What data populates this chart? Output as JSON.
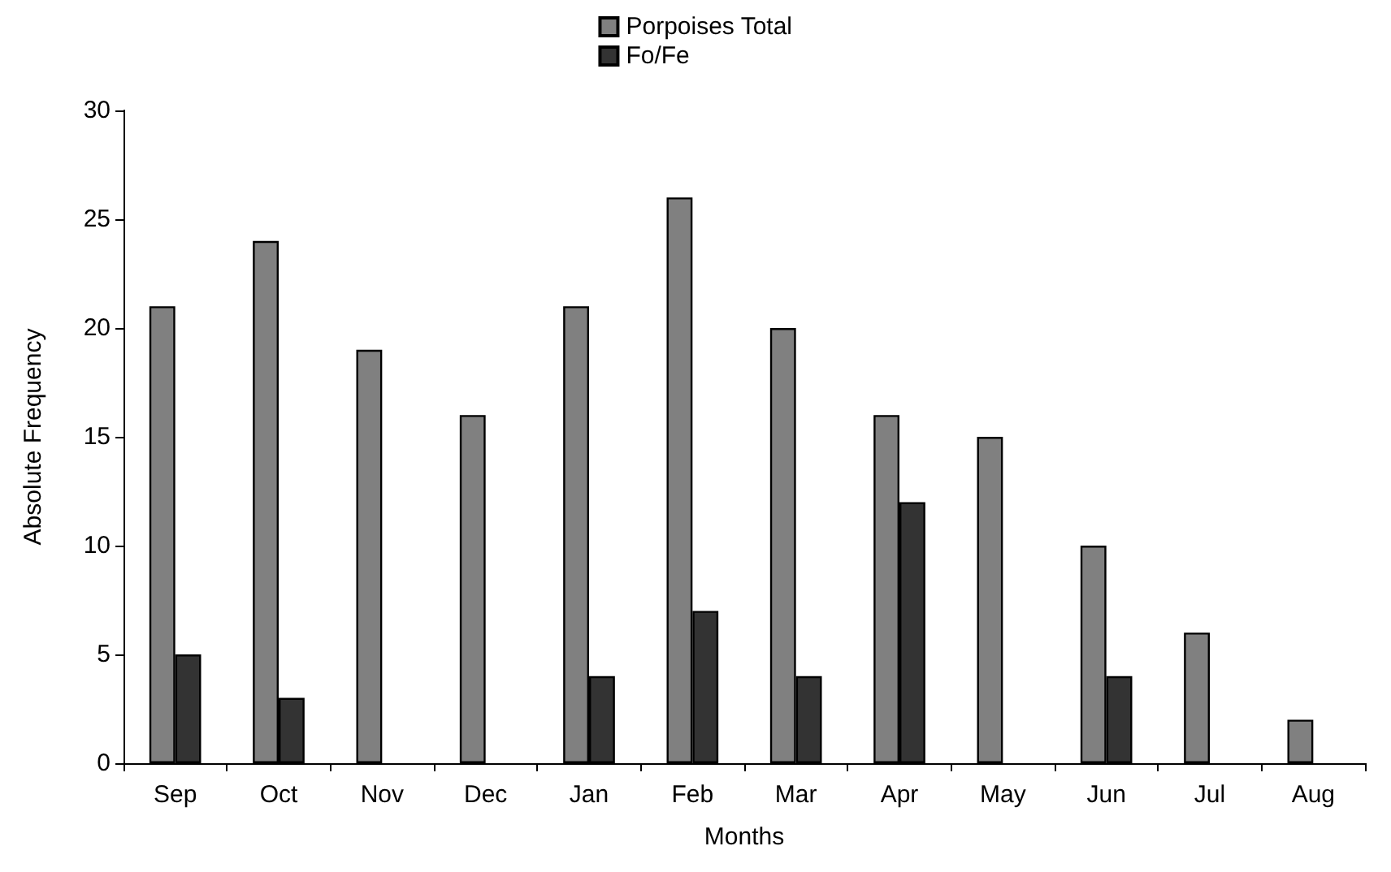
{
  "chart_data": {
    "type": "bar",
    "xlabel": "Months",
    "ylabel": "Absolute Frequency",
    "categories": [
      "Sep",
      "Oct",
      "Nov",
      "Dec",
      "Jan",
      "Feb",
      "Mar",
      "Apr",
      "May",
      "Jun",
      "Jul",
      "Aug"
    ],
    "series": [
      {
        "name": "Porpoises Total",
        "color": "#808080",
        "values": [
          21,
          24,
          19,
          16,
          21,
          26,
          20,
          16,
          15,
          10,
          6,
          2
        ]
      },
      {
        "name": "Fo/Fe",
        "color": "#333333",
        "values": [
          5,
          3,
          0,
          0,
          4,
          7,
          4,
          12,
          0,
          4,
          0,
          0
        ]
      }
    ],
    "ylim": [
      0,
      30
    ],
    "yticks": [
      0,
      5,
      10,
      15,
      20,
      25,
      30
    ],
    "grid": false,
    "legend": "top"
  }
}
